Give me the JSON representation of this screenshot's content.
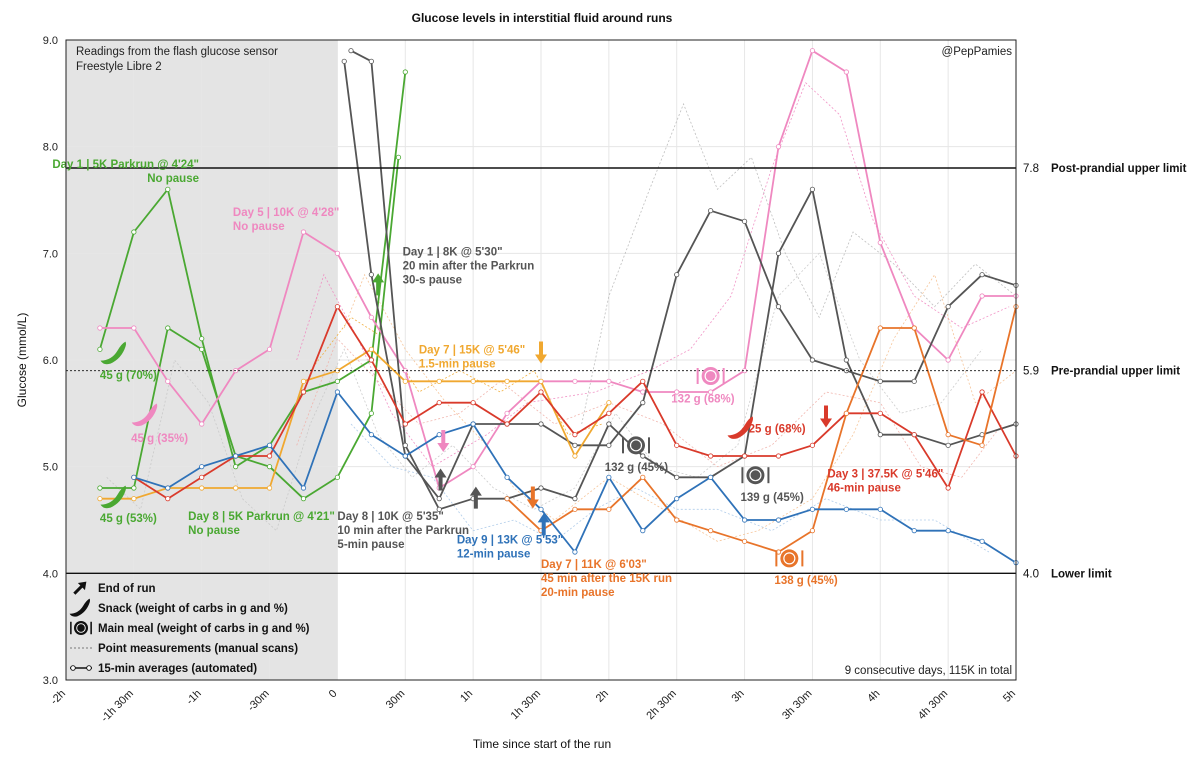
{
  "chart_data": {
    "type": "line",
    "title": "Glucose levels in interstitial fluid around runs",
    "xlabel": "Time since start of the run",
    "ylabel": "Glucose (mmol/L)",
    "xlim": [
      -2,
      5
    ],
    "ylim": [
      3.0,
      9.0
    ],
    "x_ticks": [
      {
        "v": -2,
        "label": "-2h"
      },
      {
        "v": -1.5,
        "label": "-1h 30m"
      },
      {
        "v": -1,
        "label": "-1h"
      },
      {
        "v": -0.5,
        "label": "-30m"
      },
      {
        "v": 0,
        "label": "0"
      },
      {
        "v": 0.5,
        "label": "30m"
      },
      {
        "v": 1,
        "label": "1h"
      },
      {
        "v": 1.5,
        "label": "1h 30m"
      },
      {
        "v": 2,
        "label": "2h"
      },
      {
        "v": 2.5,
        "label": "2h 30m"
      },
      {
        "v": 3,
        "label": "3h"
      },
      {
        "v": 3.5,
        "label": "3h 30m"
      },
      {
        "v": 4,
        "label": "4h"
      },
      {
        "v": 4.5,
        "label": "4h 30m"
      },
      {
        "v": 5,
        "label": "5h"
      }
    ],
    "y_ticks": [
      3.0,
      4.0,
      5.0,
      6.0,
      7.0,
      8.0,
      9.0
    ],
    "shaded_region_x": [
      -2,
      0
    ],
    "reference_lines": [
      {
        "y": 7.8,
        "value_label": "7.8",
        "label": "Post-prandial upper limit",
        "style": "solid"
      },
      {
        "y": 5.9,
        "value_label": "5.9",
        "label": "Pre-prandial upper limit",
        "style": "dotted"
      },
      {
        "y": 4.0,
        "value_label": "4.0",
        "label": "Lower limit",
        "style": "solid"
      }
    ],
    "top_left_note": [
      "Readings from the flash glucose sensor",
      "Freestyle Libre 2"
    ],
    "credit": "@PepPamies",
    "bottom_right_note": "9 consecutive days, 115K in total",
    "legend": [
      {
        "icon": "arrow",
        "label": "End of run"
      },
      {
        "icon": "snack",
        "label": "Snack (weight of carbs in g and %)"
      },
      {
        "icon": "meal",
        "label": "Main meal (weight of carbs in g and %)"
      },
      {
        "icon": "dotted",
        "label": "Point measurements (manual scans)"
      },
      {
        "icon": "averages",
        "label": "15-min averages (automated)"
      }
    ],
    "series": [
      {
        "name": "Day 1 | 5K Parkrun @ 4'24\"",
        "color": "#4aa832",
        "x": [
          -1.75,
          -1.5,
          -1.25,
          -1.0,
          -0.75,
          -0.5,
          -0.25,
          0.0,
          0.25,
          0.5
        ],
        "y": [
          6.1,
          7.2,
          7.6,
          6.2,
          5.0,
          5.2,
          5.7,
          5.8,
          6.0,
          8.7
        ]
      },
      {
        "name": "Day 8 | 5K Parkrun @ 4'21\"",
        "color": "#4aa832",
        "x": [
          -1.75,
          -1.5,
          -1.25,
          -1.0,
          -0.75,
          -0.5,
          -0.25,
          0.0,
          0.25,
          0.45
        ],
        "y": [
          4.8,
          4.8,
          6.3,
          6.1,
          5.1,
          5.0,
          4.7,
          4.9,
          5.5,
          7.9
        ]
      },
      {
        "name": "Day 5 | 10K @ 4'28\"",
        "color": "#ef88c0",
        "x": [
          -1.75,
          -1.5,
          -1.25,
          -1.0,
          -0.75,
          -0.5,
          -0.25,
          0.0,
          0.25,
          0.5,
          0.75,
          1.0,
          1.25,
          1.5,
          1.75,
          2.0,
          2.25,
          2.5,
          2.75,
          3.0,
          3.25,
          3.5,
          3.75,
          4.0,
          4.25,
          4.5,
          4.75,
          5.0
        ],
        "y": [
          6.3,
          6.3,
          5.8,
          5.4,
          5.9,
          6.1,
          7.2,
          7.0,
          6.4,
          5.9,
          4.8,
          5.0,
          5.5,
          5.8,
          5.8,
          5.8,
          5.7,
          5.7,
          5.7,
          5.9,
          8.0,
          8.9,
          8.7,
          7.1,
          6.3,
          6.0,
          6.6,
          6.6
        ]
      },
      {
        "name": "Day 1 | 8K @ 5'30\"",
        "color": "#555555",
        "x": [
          0.05,
          0.25,
          0.5,
          0.75,
          1.0,
          1.25,
          1.5,
          1.75,
          2.0,
          2.25,
          2.5,
          2.75,
          3.0,
          3.25,
          3.5,
          3.75,
          4.0,
          4.25,
          4.5,
          4.75,
          5.0
        ],
        "y": [
          8.8,
          6.8,
          5.1,
          4.7,
          5.4,
          5.4,
          5.4,
          5.2,
          5.2,
          5.6,
          6.8,
          7.4,
          7.3,
          6.5,
          6.0,
          5.9,
          5.8,
          5.8,
          6.5,
          6.8,
          6.7
        ]
      },
      {
        "name": "Day 8 | 10K @ 5'35\"",
        "color": "#555555",
        "x": [
          0.1,
          0.25,
          0.5,
          0.75,
          1.0,
          1.25,
          1.5,
          1.75,
          2.0,
          2.25,
          2.5,
          2.75,
          3.0,
          3.25,
          3.5,
          3.75,
          4.0,
          4.25,
          4.5,
          4.75,
          5.0
        ],
        "y": [
          8.9,
          8.8,
          5.2,
          4.6,
          4.7,
          4.7,
          4.8,
          4.7,
          5.4,
          5.1,
          4.9,
          4.9,
          5.1,
          7.0,
          7.6,
          6.0,
          5.3,
          5.3,
          5.2,
          5.3,
          5.4
        ]
      },
      {
        "name": "Day 7 | 15K @ 5'46\"",
        "color": "#f0a830",
        "x": [
          -1.75,
          -1.5,
          -1.25,
          -1.0,
          -0.75,
          -0.5,
          -0.25,
          0.0,
          0.25,
          0.5,
          0.75,
          1.0,
          1.25,
          1.5,
          1.75,
          2.0
        ],
        "y": [
          4.7,
          4.7,
          4.8,
          4.8,
          4.8,
          4.8,
          5.8,
          5.9,
          6.1,
          5.8,
          5.8,
          5.8,
          5.8,
          5.8,
          5.1,
          5.6
        ]
      },
      {
        "name": "Day 3 | 37.5K @ 5'46\"",
        "color": "#d93a2b",
        "x": [
          -1.5,
          -1.25,
          -1.0,
          -0.75,
          -0.5,
          -0.25,
          0.0,
          0.25,
          0.5,
          0.75,
          1.0,
          1.25,
          1.5,
          1.75,
          2.0,
          2.25,
          2.5,
          2.75,
          3.0,
          3.25,
          3.5,
          3.75,
          4.0,
          4.25,
          4.5,
          4.75,
          5.0
        ],
        "y": [
          4.9,
          4.7,
          4.9,
          5.1,
          5.1,
          5.7,
          6.5,
          6.0,
          5.4,
          5.6,
          5.6,
          5.4,
          5.7,
          5.3,
          5.5,
          5.8,
          5.2,
          5.1,
          5.1,
          5.1,
          5.2,
          5.5,
          5.5,
          5.3,
          4.8,
          5.7,
          5.1
        ]
      },
      {
        "name": "Day 7 | 11K @ 6'03\"",
        "color": "#e8742a",
        "x": [
          1.25,
          1.5,
          1.75,
          2.0,
          2.25,
          2.5,
          2.75,
          3.0,
          3.25,
          3.5,
          3.75,
          4.0,
          4.25,
          4.5,
          4.75,
          5.0
        ],
        "y": [
          4.7,
          4.4,
          4.6,
          4.6,
          4.9,
          4.5,
          4.4,
          4.3,
          4.2,
          4.4,
          5.5,
          6.3,
          6.3,
          5.3,
          5.2,
          6.5
        ]
      },
      {
        "name": "Day 9 | 13K @ 5'53\"",
        "color": "#2f72b8",
        "x": [
          -1.5,
          -1.25,
          -1.0,
          -0.75,
          -0.5,
          -0.25,
          0.0,
          0.25,
          0.5,
          0.75,
          1.0,
          1.25,
          1.5,
          1.75,
          2.0,
          2.25,
          2.5,
          2.75,
          3.0,
          3.25,
          3.5,
          3.75,
          4.0,
          4.25,
          4.5,
          4.75,
          5.0
        ],
        "y": [
          4.9,
          4.8,
          5.0,
          5.1,
          5.2,
          4.8,
          5.7,
          5.3,
          5.1,
          5.3,
          5.4,
          4.9,
          4.6,
          4.2,
          4.9,
          4.4,
          4.7,
          4.9,
          4.5,
          4.5,
          4.6,
          4.6,
          4.6,
          4.4,
          4.4,
          4.3,
          4.1
        ]
      }
    ],
    "annotations": [
      {
        "x": -1.02,
        "y": 7.8,
        "lines": [
          "Day 1 | 5K Parkrun @ 4'24\"",
          "No pause"
        ],
        "color": "#4aa832",
        "anchor": "end"
      },
      {
        "x": -0.77,
        "y": 7.35,
        "lines": [
          "Day 5 | 10K @ 4'28\"",
          "No pause"
        ],
        "color": "#ef88c0",
        "anchor": "start"
      },
      {
        "x": 0.48,
        "y": 6.98,
        "lines": [
          "Day 1 | 8K @ 5'30\"",
          "20 min after the Parkrun",
          "30-s pause"
        ],
        "color": "#555555",
        "anchor": "start"
      },
      {
        "x": 0.6,
        "y": 6.06,
        "lines": [
          "Day 7 | 15K @ 5'46\"",
          "1.5-min pause"
        ],
        "color": "#f0a830",
        "anchor": "start"
      },
      {
        "x": -1.1,
        "y": 4.5,
        "lines": [
          "Day 8 | 5K Parkrun @ 4'21\"",
          "No pause"
        ],
        "color": "#4aa832",
        "anchor": "start"
      },
      {
        "x": 0.0,
        "y": 4.5,
        "lines": [
          "Day 8 | 10K @ 5'35\"",
          "10 min after the Parkrun",
          "5-min pause"
        ],
        "color": "#555555",
        "anchor": "start"
      },
      {
        "x": 0.88,
        "y": 4.28,
        "lines": [
          "Day 9 | 13K @ 5'53\"",
          "12-min pause"
        ],
        "color": "#2f72b8",
        "anchor": "start"
      },
      {
        "x": 1.5,
        "y": 4.05,
        "lines": [
          "Day 7 | 11K @ 6'03\"",
          "45 min after the 15K run",
          "20-min pause"
        ],
        "color": "#e8742a",
        "anchor": "start"
      },
      {
        "x": 3.61,
        "y": 4.9,
        "lines": [
          "Day 3 | 37.5K @ 5'46\"",
          "46-min pause"
        ],
        "color": "#d93a2b",
        "anchor": "start"
      }
    ],
    "intake_markers": [
      {
        "kind": "snack",
        "x": -1.65,
        "y": 6.05,
        "label": "45 g (70%)",
        "lx": -1.75,
        "ly": 5.82,
        "color": "#4aa832"
      },
      {
        "kind": "snack",
        "x": -1.42,
        "y": 5.47,
        "label": "45 g (35%)",
        "lx": -1.52,
        "ly": 5.23,
        "color": "#ef88c0"
      },
      {
        "kind": "snack",
        "x": -1.65,
        "y": 4.7,
        "label": "45 g (53%)",
        "lx": -1.75,
        "ly": 4.48,
        "color": "#4aa832"
      },
      {
        "kind": "snack",
        "x": 2.97,
        "y": 5.35,
        "label": "25 g (68%)",
        "lx": 3.03,
        "ly": 5.32,
        "color": "#d93a2b"
      },
      {
        "kind": "meal",
        "x": 2.75,
        "y": 5.85,
        "label": "132 g (68%)",
        "lx": 2.46,
        "ly": 5.6,
        "color": "#ef88c0"
      },
      {
        "kind": "meal",
        "x": 2.2,
        "y": 5.2,
        "label": "132 g (45%)",
        "lx": 1.97,
        "ly": 4.96,
        "color": "#555555"
      },
      {
        "kind": "meal",
        "x": 3.08,
        "y": 4.92,
        "label": "139 g (45%)",
        "lx": 2.97,
        "ly": 4.68,
        "color": "#555555"
      },
      {
        "kind": "meal",
        "x": 3.33,
        "y": 4.14,
        "label": "138 g (45%)",
        "lx": 3.22,
        "ly": 3.9,
        "color": "#e8742a"
      }
    ],
    "run_end_markers": [
      {
        "x": 0.3,
        "y": 6.7,
        "direction": "up",
        "color": "#4aa832"
      },
      {
        "x": 0.78,
        "y": 5.25,
        "direction": "down",
        "color": "#ef88c0"
      },
      {
        "x": 0.76,
        "y": 4.87,
        "direction": "up",
        "color": "#555555"
      },
      {
        "x": 1.02,
        "y": 4.7,
        "direction": "up",
        "color": "#555555"
      },
      {
        "x": 1.5,
        "y": 6.08,
        "direction": "down",
        "color": "#f0a830"
      },
      {
        "x": 1.44,
        "y": 4.72,
        "direction": "down",
        "color": "#e8742a"
      },
      {
        "x": 1.52,
        "y": 4.45,
        "direction": "up",
        "color": "#2f72b8"
      },
      {
        "x": 3.6,
        "y": 5.48,
        "direction": "down",
        "color": "#d93a2b"
      }
    ],
    "point_measurements": [
      {
        "color": "#ef88c0",
        "x": [
          -0.3,
          -0.1,
          0.15,
          0.4,
          0.7,
          1.1,
          1.4,
          1.9,
          2.3,
          2.6,
          2.9,
          3.2,
          3.45,
          3.7,
          3.95,
          4.25,
          4.6,
          4.95
        ],
        "y": [
          6.0,
          6.8,
          6.2,
          5.5,
          5.0,
          5.3,
          5.6,
          5.7,
          5.9,
          6.1,
          6.6,
          7.8,
          8.6,
          8.3,
          7.3,
          6.6,
          6.3,
          6.5
        ]
      },
      {
        "color": "#f0a830",
        "x": [
          -0.2,
          0.1,
          0.35,
          0.6,
          0.9,
          1.2,
          1.45,
          1.7,
          1.95
        ],
        "y": [
          5.9,
          6.4,
          6.2,
          5.7,
          5.9,
          5.7,
          5.9,
          5.3,
          5.4
        ]
      },
      {
        "color": "#f5c090",
        "x": [
          0.05,
          0.2,
          0.5,
          0.8,
          1.1,
          1.3,
          1.6,
          2.0,
          2.4,
          2.8,
          3.1,
          3.5,
          3.8,
          4.1,
          4.4,
          4.7,
          5.0
        ],
        "y": [
          6.3,
          6.8,
          6.1,
          5.6,
          5.2,
          4.8,
          4.5,
          4.9,
          4.6,
          4.3,
          4.4,
          4.7,
          5.3,
          6.2,
          6.8,
          5.6,
          5.9
        ]
      },
      {
        "color": "#b8b8b8",
        "x": [
          1.8,
          2.0,
          2.3,
          2.55,
          2.8,
          3.05,
          3.3,
          3.55,
          3.8,
          4.1,
          4.4,
          4.7,
          5.0
        ],
        "y": [
          5.4,
          6.6,
          7.6,
          8.4,
          7.6,
          7.9,
          7.0,
          6.4,
          7.2,
          6.9,
          6.5,
          6.9,
          6.6
        ]
      },
      {
        "color": "#a8c8e8",
        "x": [
          0.1,
          0.4,
          0.7,
          1.0,
          1.3,
          1.6,
          1.9,
          2.2,
          2.5,
          2.8,
          3.2,
          3.6,
          4.0,
          4.4,
          4.8
        ],
        "y": [
          5.4,
          5.0,
          4.9,
          4.4,
          4.5,
          4.3,
          4.6,
          4.8,
          4.6,
          4.6,
          4.4,
          4.7,
          4.5,
          4.5,
          4.2
        ]
      },
      {
        "color": "#c8c8c8",
        "x": [
          -1.7,
          -1.45,
          -1.2,
          -0.95,
          -0.7,
          -0.45,
          -0.2,
          0.05,
          0.3,
          0.55,
          0.85,
          1.15,
          1.45,
          1.75,
          2.05,
          2.35,
          2.65,
          2.95,
          3.25,
          3.55,
          3.85,
          4.15,
          4.45,
          4.75
        ],
        "y": [
          4.9,
          4.6,
          6.0,
          5.6,
          4.7,
          4.4,
          5.4,
          6.1,
          5.3,
          4.9,
          5.2,
          4.8,
          4.6,
          4.8,
          5.5,
          5.0,
          4.9,
          5.2,
          6.6,
          7.0,
          6.0,
          5.5,
          5.6,
          6.1
        ]
      },
      {
        "color": "#f0b0a8",
        "x": [
          -0.3,
          0.0,
          0.3,
          0.6,
          0.9,
          1.2,
          1.6,
          2.0,
          2.4,
          2.8,
          3.2,
          3.6,
          4.0,
          4.3,
          4.6,
          4.9
        ],
        "y": [
          5.2,
          6.2,
          5.8,
          5.4,
          5.5,
          5.8,
          5.4,
          5.6,
          5.4,
          5.0,
          5.2,
          5.7,
          5.6,
          5.0,
          4.9,
          5.4
        ]
      }
    ]
  }
}
